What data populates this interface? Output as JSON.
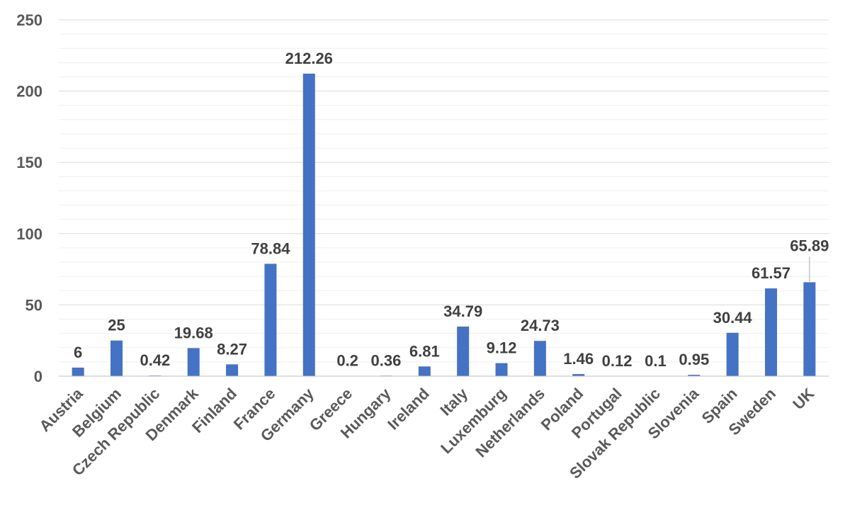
{
  "chart_data": {
    "type": "bar",
    "title": "",
    "xlabel": "",
    "ylabel": "",
    "ylim": [
      0,
      250
    ],
    "yticks": [
      0,
      50,
      100,
      150,
      200,
      250
    ],
    "grid": true,
    "legend": "none",
    "bar_color": "#4472c4",
    "categories": [
      "Austria",
      "Belgium",
      "Czech Republic",
      "Denmark",
      "Finland",
      "France",
      "Germany",
      "Greece",
      "Hungary",
      "Ireland",
      "Italy",
      "Luxemburg",
      "Netherlands",
      "Poland",
      "Portugal",
      "Slovak Republic",
      "Slovenia",
      "Spain",
      "Sweden",
      "UK"
    ],
    "values": [
      6,
      25,
      0.42,
      19.68,
      8.27,
      78.84,
      212.26,
      0.2,
      0.36,
      6.81,
      34.79,
      9.12,
      24.73,
      1.46,
      0.12,
      0.1,
      0.95,
      30.44,
      61.57,
      65.89
    ],
    "data_labels": [
      "6",
      "25",
      "0.42",
      "19.68",
      "8.27",
      "78.84",
      "212.26",
      "0.2",
      "0.36",
      "6.81",
      "34.79",
      "9.12",
      "24.73",
      "1.46",
      "0.12",
      "0.1",
      "0.95",
      "30.44",
      "61.57",
      "65.89"
    ]
  }
}
